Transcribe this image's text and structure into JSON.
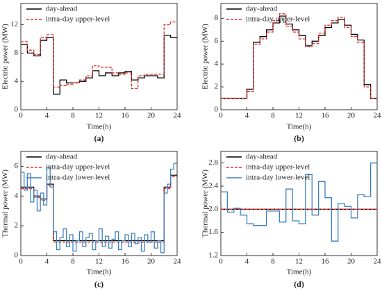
{
  "chart_data": [
    {
      "type": "line",
      "step": "post",
      "label": "(a)",
      "xlabel": "Time(h)",
      "ylabel": "Electric power (MW)",
      "x": [
        0,
        1,
        2,
        3,
        4,
        5,
        6,
        7,
        8,
        9,
        10,
        11,
        12,
        13,
        14,
        15,
        16,
        17,
        18,
        19,
        20,
        21,
        22,
        23,
        24
      ],
      "xlim": [
        0,
        24
      ],
      "xticks": [
        0,
        4,
        8,
        12,
        16,
        20,
        24
      ],
      "ylim": [
        0,
        15
      ],
      "yticks": [
        0,
        4,
        8,
        12
      ],
      "legend": "upper left",
      "series": [
        {
          "name": "day-ahead",
          "color": "#000000",
          "dash": false,
          "values": [
            9.2,
            8.0,
            7.6,
            9.8,
            10.2,
            2.2,
            4.2,
            3.8,
            3.8,
            4.0,
            4.5,
            5.5,
            4.8,
            5.2,
            4.8,
            5.2,
            5.4,
            4.2,
            4.5,
            4.8,
            4.8,
            4.5,
            10.5,
            10.2,
            10.2
          ]
        },
        {
          "name": "intra-day upper-level",
          "color": "#e0302a",
          "dash": true,
          "values": [
            9.6,
            8.4,
            7.8,
            10.2,
            10.6,
            3.2,
            3.4,
            3.6,
            3.8,
            4.2,
            4.8,
            6.2,
            6.0,
            6.0,
            5.2,
            5.0,
            5.2,
            3.0,
            4.8,
            5.0,
            5.0,
            5.0,
            12.0,
            12.4,
            12.4
          ]
        }
      ]
    },
    {
      "type": "line",
      "step": "post",
      "label": "(b)",
      "xlabel": "Time(h)",
      "ylabel": "Electric power (MW)",
      "x": [
        0,
        1,
        2,
        3,
        4,
        5,
        6,
        7,
        8,
        9,
        10,
        11,
        12,
        13,
        14,
        15,
        16,
        17,
        18,
        19,
        20,
        21,
        22,
        23,
        24
      ],
      "xlim": [
        0,
        24
      ],
      "xticks": [
        0,
        4,
        8,
        12,
        16,
        20,
        24
      ],
      "ylim": [
        0,
        9.3
      ],
      "yticks": [
        0,
        2,
        4,
        6,
        8
      ],
      "legend": "upper left",
      "series": [
        {
          "name": "day-ahead",
          "color": "#000000",
          "dash": false,
          "values": [
            1,
            1,
            1,
            1,
            1.8,
            5.9,
            6.4,
            7.0,
            7.6,
            8.2,
            7.5,
            7.0,
            6.5,
            5.6,
            6.0,
            6.5,
            7.2,
            7.6,
            7.9,
            7.4,
            6.6,
            6.1,
            2.2,
            1.0,
            1.0
          ]
        },
        {
          "name": "intra-day upper-level",
          "color": "#e0302a",
          "dash": true,
          "values": [
            1,
            1,
            1,
            1,
            1.6,
            5.7,
            6.2,
            6.8,
            7.8,
            8.4,
            7.3,
            6.8,
            6.2,
            5.5,
            5.8,
            6.7,
            7.4,
            7.8,
            8.1,
            7.2,
            6.4,
            5.9,
            2.0,
            1.0,
            1.0
          ]
        }
      ]
    },
    {
      "type": "line",
      "step": "post",
      "label": "(c)",
      "xlabel": "Time(h)",
      "ylabel": "Thermal power (MW)",
      "xlim": [
        0,
        24
      ],
      "xticks": [
        0,
        4,
        8,
        12,
        16,
        20,
        24
      ],
      "ylim": [
        0,
        7
      ],
      "yticks": [
        0,
        2,
        4,
        6
      ],
      "legend": "upper left",
      "series": [
        {
          "name": "day-ahead",
          "color": "#000000",
          "dash": false,
          "x": [
            0,
            1,
            2,
            3,
            4,
            5,
            6,
            7,
            8,
            9,
            10,
            11,
            12,
            13,
            14,
            15,
            16,
            17,
            18,
            19,
            20,
            21,
            22,
            23,
            24
          ],
          "values": [
            4.6,
            4.6,
            4.0,
            3.8,
            4.8,
            1.0,
            1.0,
            1.0,
            1.0,
            1.0,
            1.0,
            1.0,
            1.0,
            1.0,
            1.0,
            1.0,
            1.0,
            1.0,
            1.0,
            1.0,
            1.0,
            1.0,
            4.6,
            5.4,
            5.4
          ]
        },
        {
          "name": "intra-day upper-level",
          "color": "#e0302a",
          "dash": true,
          "x": [
            0,
            1,
            2,
            3,
            4,
            5,
            6,
            7,
            8,
            9,
            10,
            11,
            12,
            13,
            14,
            15,
            16,
            17,
            18,
            19,
            20,
            21,
            22,
            23,
            24
          ],
          "values": [
            4.5,
            4.5,
            3.9,
            3.7,
            4.7,
            0.9,
            0.9,
            0.9,
            0.9,
            0.9,
            0.9,
            0.9,
            0.9,
            0.9,
            0.9,
            0.9,
            0.9,
            0.9,
            0.9,
            0.9,
            0.9,
            0.9,
            4.5,
            5.3,
            5.3
          ]
        },
        {
          "name": "intra-day lower-level",
          "color": "#3a7fc1",
          "dash": false,
          "x": [
            0,
            0.5,
            1,
            1.5,
            2,
            2.5,
            3,
            3.5,
            4,
            4.5,
            5,
            5.5,
            6,
            6.5,
            7,
            7.5,
            8,
            8.5,
            9,
            9.5,
            10,
            10.5,
            11,
            11.5,
            12,
            12.5,
            13,
            13.5,
            14,
            14.5,
            15,
            15.5,
            16,
            16.5,
            17,
            17.5,
            18,
            18.5,
            19,
            19.5,
            20,
            20.5,
            21,
            21.5,
            22,
            22.5,
            23,
            23.5,
            24
          ],
          "values": [
            5.6,
            4.4,
            5.5,
            3.6,
            4.4,
            3.0,
            4.2,
            3.4,
            5.9,
            4.6,
            1.6,
            0.4,
            1.2,
            1.8,
            0.6,
            1.4,
            0.3,
            1.0,
            1.6,
            0.6,
            1.2,
            1.5,
            0.4,
            1.0,
            1.8,
            0.6,
            1.3,
            0.5,
            1.1,
            1.6,
            0.4,
            1.0,
            1.4,
            0.6,
            1.5,
            0.8,
            1.2,
            0.3,
            1.4,
            0.9,
            1.6,
            0.5,
            1.0,
            0.2,
            4.2,
            4.8,
            5.8,
            6.2,
            6.2
          ]
        }
      ]
    },
    {
      "type": "line",
      "step": "post",
      "label": "(d)",
      "xlabel": "Time(h)",
      "ylabel": "Thermal power (MW)",
      "x": [
        0,
        1,
        2,
        3,
        4,
        5,
        6,
        7,
        8,
        9,
        10,
        11,
        12,
        13,
        14,
        15,
        16,
        17,
        18,
        19,
        20,
        21,
        22,
        23,
        24
      ],
      "xlim": [
        0,
        24
      ],
      "xticks": [
        0,
        4,
        8,
        12,
        16,
        20,
        24
      ],
      "ylim": [
        1.2,
        3.0
      ],
      "yticks": [
        {
          "value": 1.2,
          "label": "1.2"
        },
        {
          "value": 1.6,
          "label": "1.6"
        },
        {
          "value": 2,
          "label": "2.0"
        },
        {
          "value": 2.4,
          "label": "2.4"
        },
        {
          "value": 2.8,
          "label": "2.8"
        }
      ],
      "legend": "upper left",
      "series": [
        {
          "name": "day-ahead",
          "color": "#000000",
          "dash": false,
          "values": [
            2,
            2,
            2,
            2,
            2,
            2,
            2,
            2,
            2,
            2,
            2,
            2,
            2,
            2,
            2,
            2,
            2,
            2,
            2,
            2,
            2,
            2,
            2,
            2,
            2
          ]
        },
        {
          "name": "intra-day upper-level",
          "color": "#e0302a",
          "dash": true,
          "values": [
            2,
            2,
            2,
            2,
            2,
            2,
            2,
            2,
            2,
            2,
            2,
            2,
            2,
            2,
            2,
            2,
            2,
            2,
            2,
            2,
            2,
            2,
            2,
            2,
            2
          ]
        },
        {
          "name": "intra-day lower-level",
          "color": "#3a7fc1",
          "dash": false,
          "values": [
            2.3,
            1.95,
            2.02,
            1.9,
            1.75,
            1.72,
            1.72,
            1.97,
            1.97,
            1.78,
            2.35,
            1.8,
            1.75,
            2.6,
            1.9,
            2.48,
            2.2,
            1.45,
            2.1,
            2.05,
            1.85,
            2.25,
            2.22,
            2.8,
            2.8
          ]
        }
      ]
    }
  ]
}
